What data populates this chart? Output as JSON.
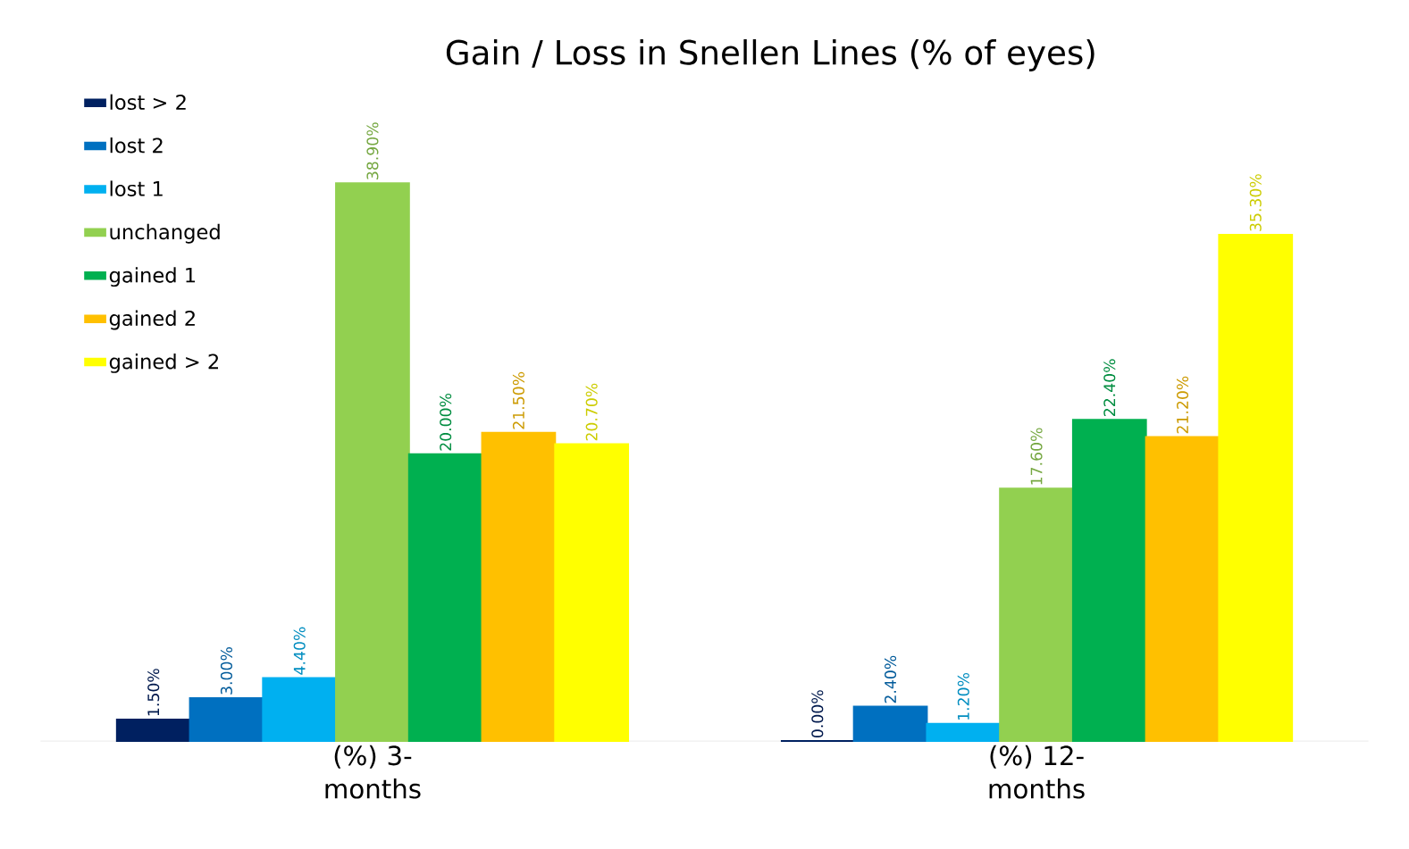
{
  "chart_data": {
    "type": "bar",
    "title": "Gain / Loss in Snellen Lines (% of eyes)",
    "categories": [
      "(%) 3- months",
      "(%) 12- months"
    ],
    "series": [
      {
        "name": "lost > 2",
        "color": "#002060",
        "values": [
          1.5,
          0.0
        ],
        "value_labels": [
          "1.50%",
          "0.00%"
        ]
      },
      {
        "name": "lost 2",
        "color": "#0070c0",
        "values": [
          3.0,
          2.4
        ],
        "value_labels": [
          "3.00%",
          "2.40%"
        ]
      },
      {
        "name": "lost 1",
        "color": "#00b0f0",
        "values": [
          4.4,
          1.2
        ],
        "value_labels": [
          "4.40%",
          "1.20%"
        ]
      },
      {
        "name": "unchanged",
        "color": "#92d050",
        "values": [
          38.9,
          17.6
        ],
        "value_labels": [
          "38.90%",
          "17.60%"
        ]
      },
      {
        "name": "gained 1",
        "color": "#00b050",
        "values": [
          20.0,
          22.4
        ],
        "value_labels": [
          "20.00%",
          "22.40%"
        ]
      },
      {
        "name": "gained 2",
        "color": "#ffc000",
        "values": [
          21.5,
          21.2
        ],
        "value_labels": [
          "21.50%",
          "21.20%"
        ]
      },
      {
        "name": "gained > 2",
        "color": "#ffff00",
        "values": [
          20.7,
          35.3
        ],
        "value_labels": [
          "20.70%",
          "35.30%"
        ]
      }
    ],
    "legend": "top left"
  }
}
